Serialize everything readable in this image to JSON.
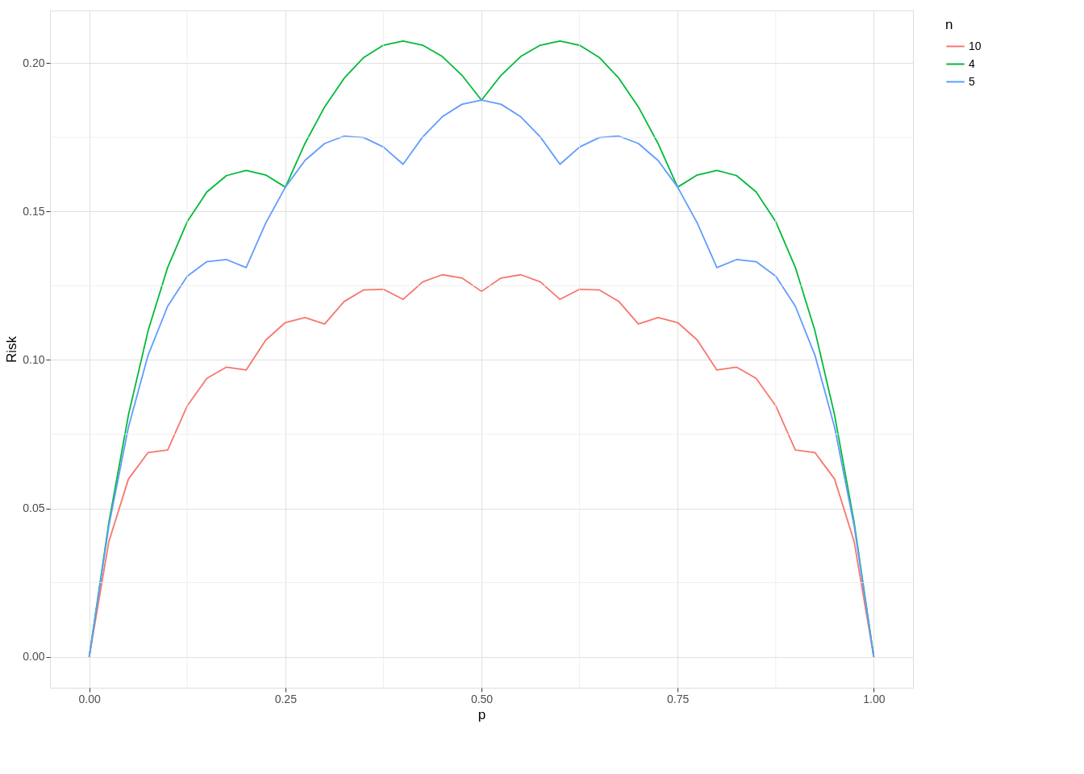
{
  "chart_data": {
    "type": "line",
    "xlabel": "p",
    "ylabel": "Risk",
    "legend_title": "n",
    "legend": "right",
    "grid": true,
    "x": [
      0,
      0.025,
      0.05,
      0.075,
      0.1,
      0.125,
      0.15,
      0.175,
      0.2,
      0.225,
      0.25,
      0.275,
      0.3,
      0.325,
      0.35,
      0.375,
      0.4,
      0.425,
      0.45,
      0.475,
      0.5,
      0.525,
      0.55,
      0.575,
      0.6,
      0.625,
      0.65,
      0.675,
      0.7,
      0.725,
      0.75,
      0.775,
      0.8,
      0.825,
      0.85,
      0.875,
      0.9,
      0.925,
      0.95,
      0.975,
      1
    ],
    "series": [
      {
        "name": "10",
        "color": "#f8766d",
        "values": [
          0,
          0.0388,
          0.0599,
          0.0688,
          0.0697,
          0.0846,
          0.0938,
          0.0976,
          0.0966,
          0.1067,
          0.1126,
          0.1143,
          0.1121,
          0.1197,
          0.1236,
          0.1238,
          0.1204,
          0.1263,
          0.1287,
          0.1276,
          0.1231,
          0.1276,
          0.1287,
          0.1263,
          0.1204,
          0.1238,
          0.1236,
          0.1197,
          0.1121,
          0.1143,
          0.1126,
          0.1067,
          0.0966,
          0.0976,
          0.0938,
          0.0846,
          0.0697,
          0.0688,
          0.0599,
          0.0388,
          0
        ]
      },
      {
        "name": "4",
        "color": "#00ba38",
        "values": [
          0,
          0.0452,
          0.0815,
          0.1098,
          0.1312,
          0.1466,
          0.1566,
          0.1621,
          0.1638,
          0.1623,
          0.1582,
          0.1729,
          0.1852,
          0.1949,
          0.2019,
          0.206,
          0.2074,
          0.206,
          0.2022,
          0.1959,
          0.1875,
          0.1959,
          0.2022,
          0.206,
          0.2074,
          0.206,
          0.2019,
          0.1949,
          0.1852,
          0.1729,
          0.1582,
          0.1623,
          0.1638,
          0.1621,
          0.1566,
          0.1466,
          0.1312,
          0.1098,
          0.0815,
          0.0452,
          0
        ]
      },
      {
        "name": "5",
        "color": "#619cff",
        "values": [
          0,
          0.0441,
          0.0774,
          0.1016,
          0.1181,
          0.1282,
          0.1331,
          0.1338,
          0.1311,
          0.1461,
          0.1582,
          0.1672,
          0.1729,
          0.1754,
          0.1749,
          0.1717,
          0.1659,
          0.1751,
          0.1819,
          0.1861,
          0.1875,
          0.1861,
          0.1819,
          0.1751,
          0.1659,
          0.1717,
          0.1749,
          0.1754,
          0.1729,
          0.1672,
          0.1582,
          0.1461,
          0.1311,
          0.1338,
          0.1331,
          0.1282,
          0.1181,
          0.1016,
          0.0774,
          0.0441,
          0
        ]
      }
    ],
    "xlim": [
      -0.05,
      1.05
    ],
    "ylim": [
      -0.0104,
      0.2177
    ],
    "xticks": [
      {
        "value": 0,
        "label": "0.00"
      },
      {
        "value": 0.25,
        "label": "0.25"
      },
      {
        "value": 0.5,
        "label": "0.50"
      },
      {
        "value": 0.75,
        "label": "0.75"
      },
      {
        "value": 1,
        "label": "1.00"
      }
    ],
    "yticks": [
      {
        "value": 0,
        "label": "0.00"
      },
      {
        "value": 0.05,
        "label": "0.05"
      },
      {
        "value": 0.1,
        "label": "0.10"
      },
      {
        "value": 0.15,
        "label": "0.15"
      },
      {
        "value": 0.2,
        "label": "0.20"
      }
    ]
  }
}
